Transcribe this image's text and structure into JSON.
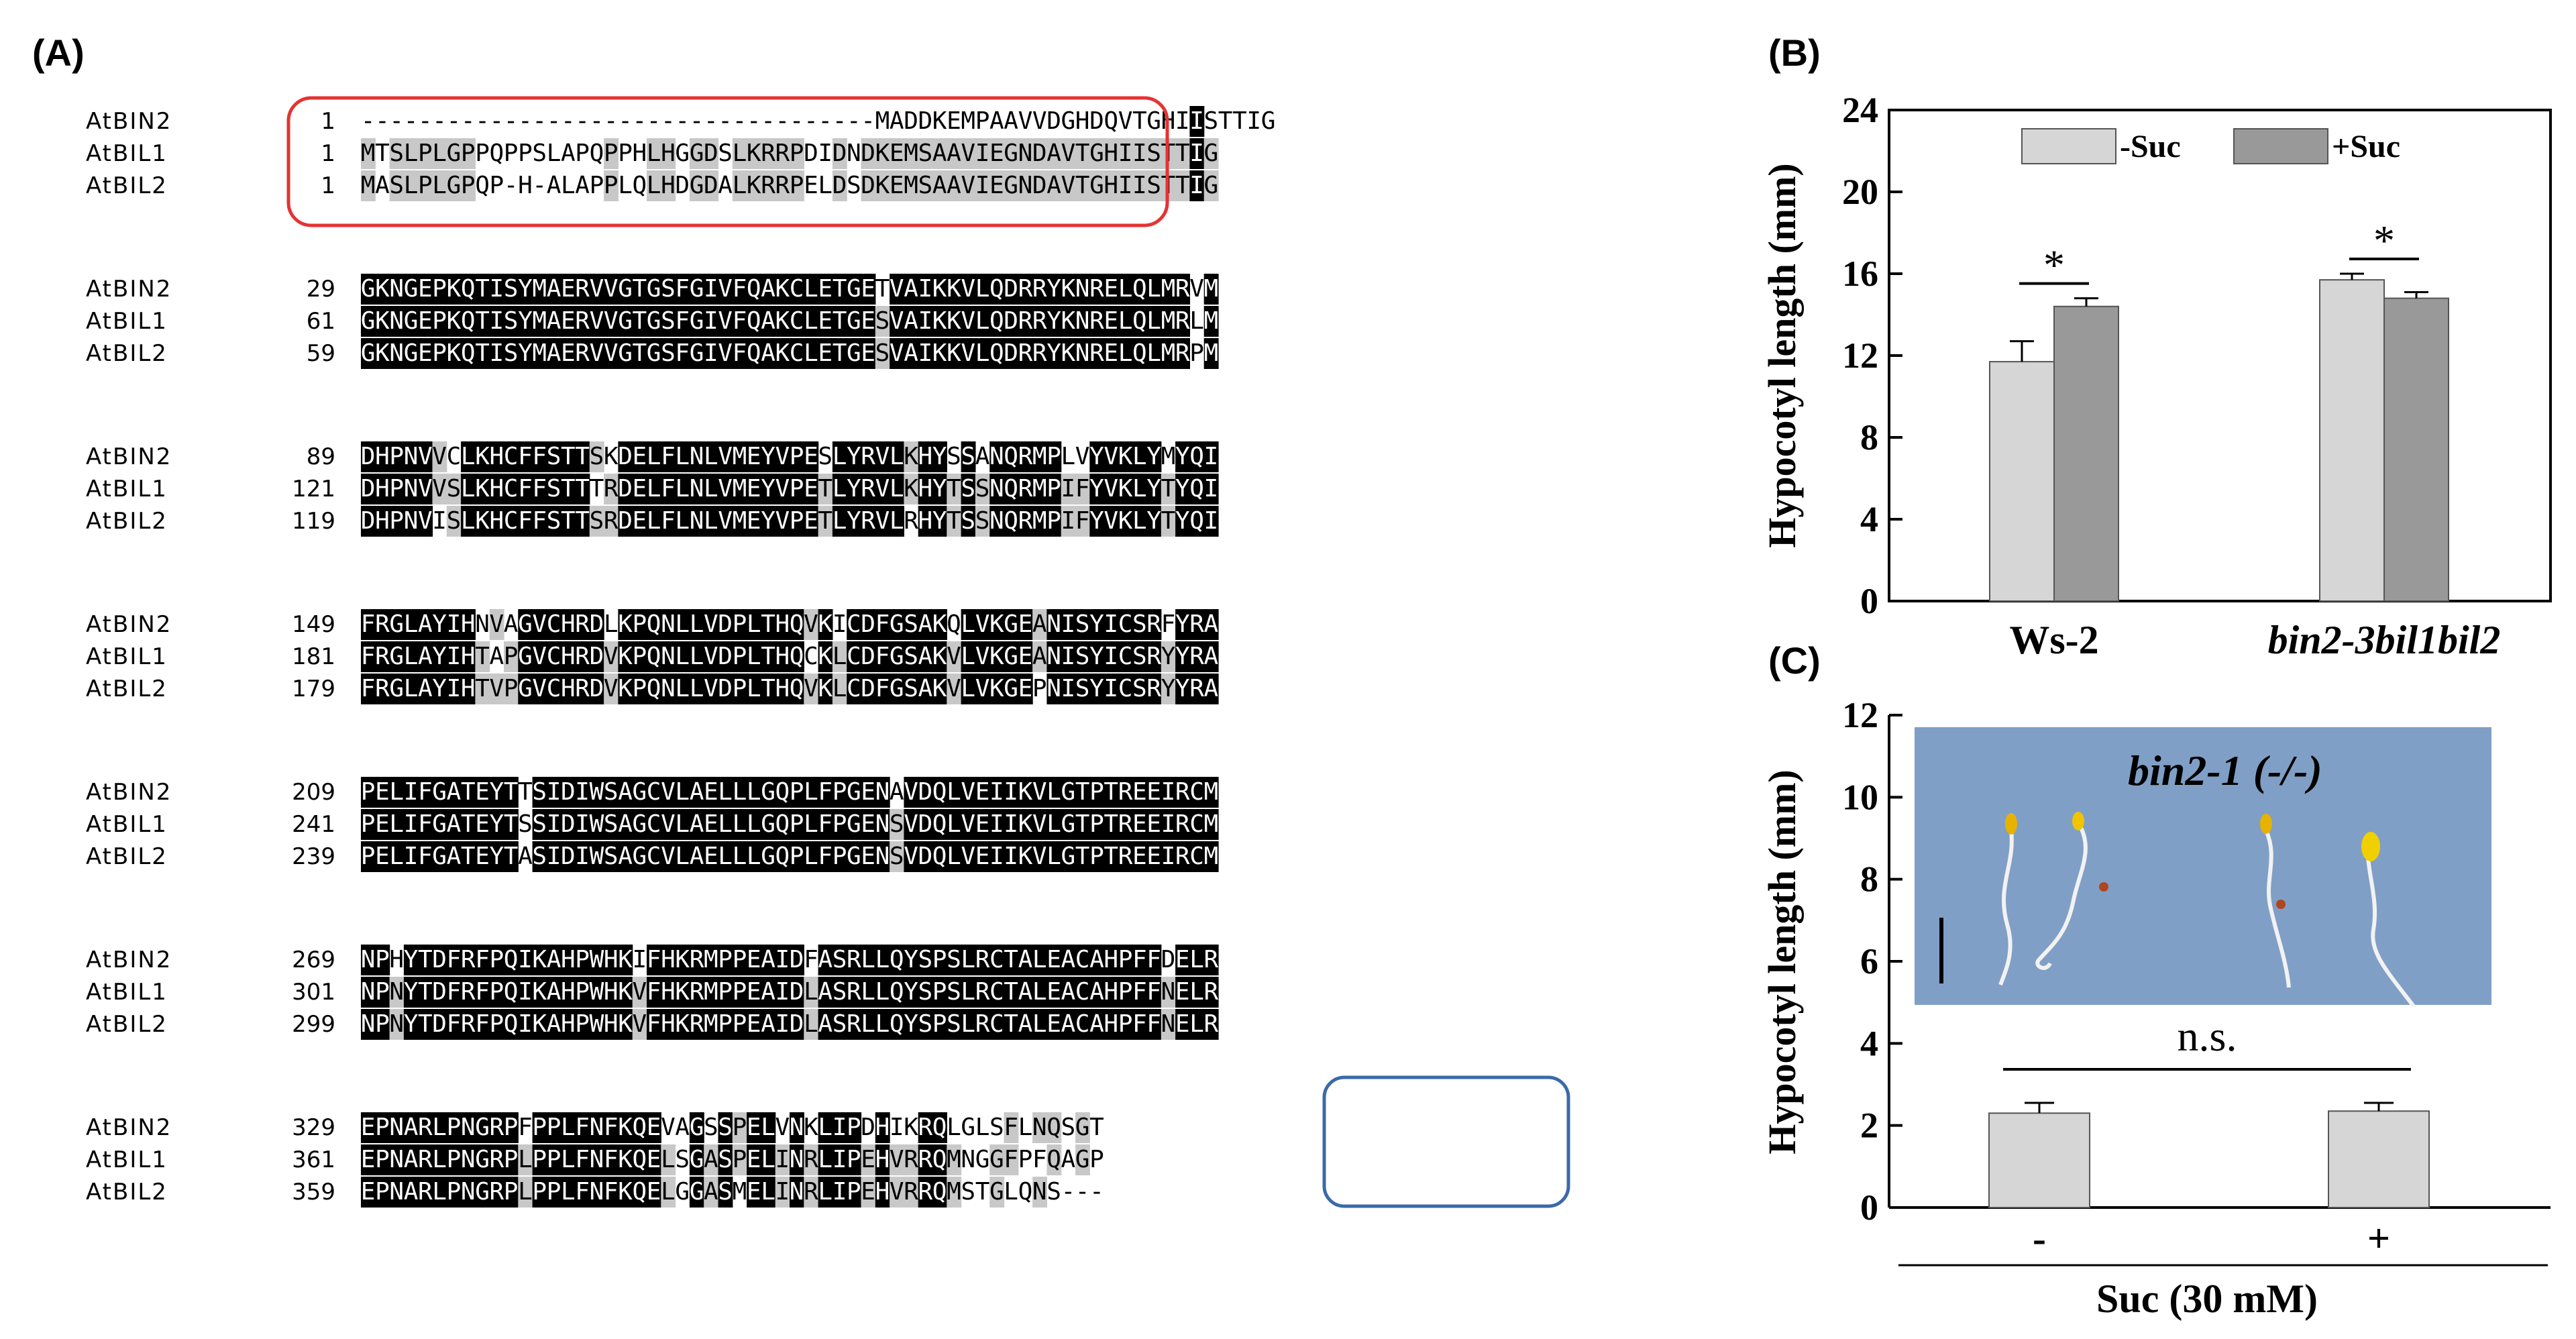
{
  "panel_labels": {
    "a": "(A)",
    "b": "(B)",
    "c": "(C)"
  },
  "alignment": {
    "blocks": [
      {
        "rows": [
          {
            "name": "AtBIN2",
            "start": "1",
            "seq": "------------------------------------MADDKEMPAAVVDGHDQVTGHIISTTIG"
          },
          {
            "name": "AtBIL1",
            "start": "1",
            "seq": "MTSLPLGPPQPPSLAPQPPHLHGGDSLKRRPDIDNDKEMSAAVIEGNDAVTGHIISTTIG"
          },
          {
            "name": "AtBIL2",
            "start": "1",
            "seq": "MASLPLGPQP-H-ALAPPLQLHDGDALKRRPELDSDKEMSAAVIEGNDAVTGHIISTTIG"
          }
        ]
      },
      {
        "rows": [
          {
            "name": "AtBIN2",
            "start": "29",
            "seq": "GKNGEPKQTISYMAERVVGTGSFGIVFQAKCLETGETVAIKKVLQDRRYKNRELQLMRVM"
          },
          {
            "name": "AtBIL1",
            "start": "61",
            "seq": "GKNGEPKQTISYMAERVVGTGSFGIVFQAKCLETGESVAIKKVLQDRRYKNRELQLMRLM"
          },
          {
            "name": "AtBIL2",
            "start": "59",
            "seq": "GKNGEPKQTISYMAERVVGTGSFGIVFQAKCLETGESVAIKKVLQDRRYKNRELQLMRPM"
          }
        ]
      },
      {
        "rows": [
          {
            "name": "AtBIN2",
            "start": "89",
            "seq": "DHPNVVCLKHCFFSTTSKDELFLNLVMEYVPESLYRVLKHYSSANQRMPLVYVKLYMYQI"
          },
          {
            "name": "AtBIL1",
            "start": "121",
            "seq": "DHPNVVSLKHCFFSTTTRDELFLNLVMEYVPETLYRVLKHYTSSNQRMPIFYVKLYTYQI"
          },
          {
            "name": "AtBIL2",
            "start": "119",
            "seq": "DHPNVISLKHCFFSTTSRDELFLNLVMEYVPETLYRVLRHYTSSNQRMPIFYVKLYTYQI"
          }
        ]
      },
      {
        "rows": [
          {
            "name": "AtBIN2",
            "start": "149",
            "seq": "FRGLAYIHNVAGVCHRDLKPQNLLVDPLTHQVKICDFGSAKQLVKGEANISYICSRFYRA"
          },
          {
            "name": "AtBIL1",
            "start": "181",
            "seq": "FRGLAYIHTAPGVCHRDVKPQNLLVDPLTHQCKLCDFGSAKVLVKGEANISYICSRYYRA"
          },
          {
            "name": "AtBIL2",
            "start": "179",
            "seq": "FRGLAYIHTVPGVCHRDVKPQNLLVDPLTHQVKLCDFGSAKVLVKGEPNISYICSRYYRA"
          }
        ]
      },
      {
        "rows": [
          {
            "name": "AtBIN2",
            "start": "209",
            "seq": "PELIFGATEYTTSIDIWSAGCVLAELLLGQPLFPGENAVDQLVEIIKVLGTPTREEIRCM"
          },
          {
            "name": "AtBIL1",
            "start": "241",
            "seq": "PELIFGATEYTSSIDIWSAGCVLAELLLGQPLFPGENSVDQLVEIIKVLGTPTREEIRCM"
          },
          {
            "name": "AtBIL2",
            "start": "239",
            "seq": "PELIFGATEYTASIDIWSAGCVLAELLLGQPLFPGENSVDQLVEIIKVLGTPTREEIRCM"
          }
        ]
      },
      {
        "rows": [
          {
            "name": "AtBIN2",
            "start": "269",
            "seq": "NPHYTDFRFPQIKAHPWHKIFHKRMPPEAIDFASRLLQYSPSLRCTALEACAHPFFDELR"
          },
          {
            "name": "AtBIL1",
            "start": "301",
            "seq": "NPNYTDFRFPQIKAHPWHKVFHKRMPPEAIDLASRLLQYSPSLRCTALEACAHPFFNELR"
          },
          {
            "name": "AtBIL2",
            "start": "299",
            "seq": "NPNYTDFRFPQIKAHPWHKVFHKRMPPEAIDLASRLLQYSPSLRCTALEACAHPFFNELR"
          }
        ]
      },
      {
        "rows": [
          {
            "name": "AtBIN2",
            "start": "329",
            "seq": "EPNARLPNGRPFPPLFNFKQEVAGSSPELVNKLIPDHIKRQLGLSFLNQSGT"
          },
          {
            "name": "AtBIL1",
            "start": "361",
            "seq": "EPNARLPNGRPLPPLFNFKQELSGASPELINRLIPEHVRRQMNGGFPFQAGP"
          },
          {
            "name": "AtBIL2",
            "start": "359",
            "seq": "EPNARLPNGRPLPPLFNFKQELGGASMELINRLIPEHVRRQMSTGLQNS---"
          }
        ]
      }
    ]
  },
  "chart_data": [
    {
      "type": "bar",
      "panel": "(B)",
      "categories": [
        "Ws-2",
        "bin2-3bil1bil2"
      ],
      "series": [
        {
          "name": "-Suc",
          "values": [
            11.7,
            15.7
          ],
          "errors": [
            1.0,
            0.3
          ],
          "color": "#d6d6d6"
        },
        {
          "name": "+Suc",
          "values": [
            14.4,
            14.8
          ],
          "errors": [
            0.4,
            0.3
          ],
          "color": "#999999"
        }
      ],
      "ylabel": "Hypocotyl length (mm)",
      "ylim": [
        0,
        24
      ],
      "yticks": [
        "0",
        "4",
        "8",
        "12",
        "16",
        "20",
        "24"
      ],
      "significance": [
        "*",
        "*"
      ],
      "legend_position": "top"
    },
    {
      "type": "bar",
      "panel": "(C)",
      "categories": [
        "-",
        "+"
      ],
      "series": [
        {
          "values": [
            2.3,
            2.35
          ],
          "errors": [
            0.25,
            0.2
          ],
          "color": "#d6d6d6"
        }
      ],
      "ylabel": "Hypocotyl length (mm)",
      "xlabel": "Suc (30 mM)",
      "ylim": [
        0,
        12
      ],
      "yticks": [
        "0",
        "2",
        "4",
        "6",
        "8",
        "10",
        "12"
      ],
      "significance": "n.s.",
      "inset_label": "bin2-1 (-/-)",
      "inset_background": "#7f9fc7"
    }
  ]
}
